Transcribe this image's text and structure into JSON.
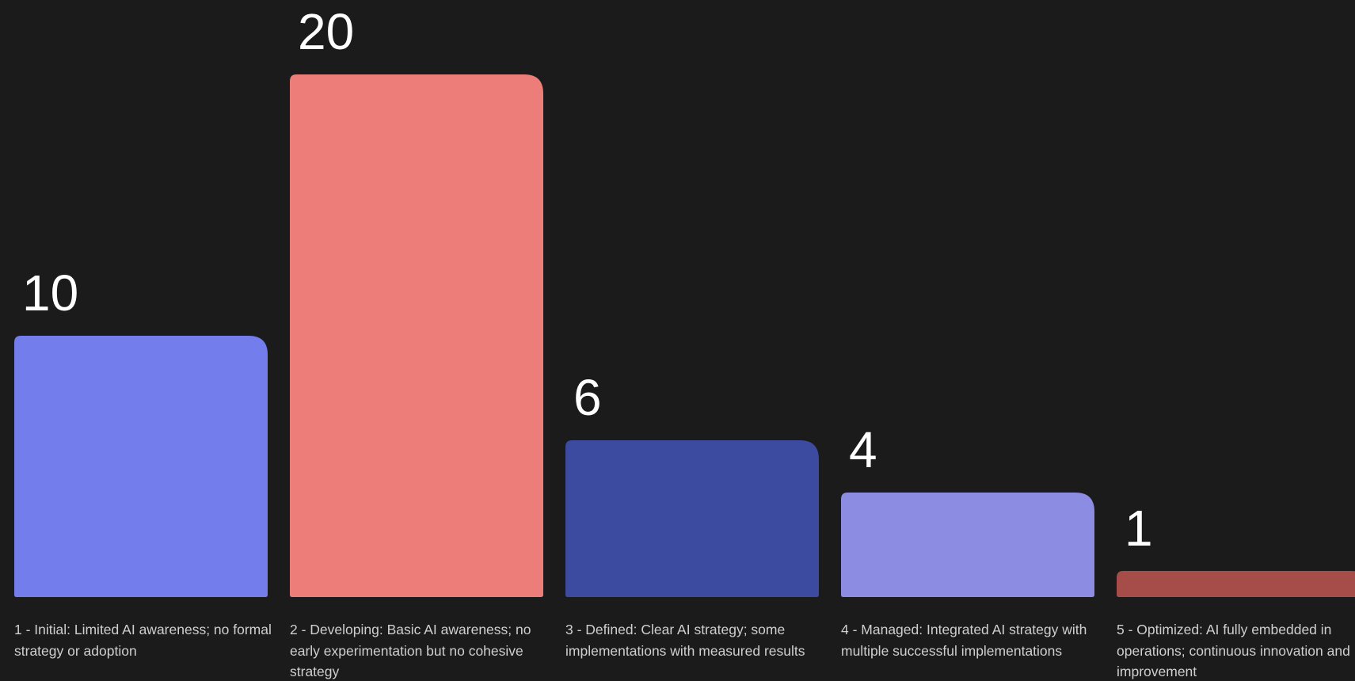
{
  "chart_data": {
    "type": "bar",
    "categories": [
      "1 - Initial: Limited AI awareness; no formal strategy or adoption",
      "2 - Developing: Basic AI awareness; no early experimentation but no cohesive strategy",
      "3 - Defined: Clear AI strategy; some implementations with measured results",
      "4 - Managed: Integrated AI strategy with multiple successful implementations",
      "5 - Optimized: AI fully embedded in operations; continuous innovation and improvement"
    ],
    "values": [
      10,
      20,
      6,
      4,
      1
    ],
    "value_labels": [
      "10",
      "20",
      "6",
      "4",
      "1"
    ],
    "colors": [
      "#737deb",
      "#ed7d79",
      "#3c4a9f",
      "#8c8ce3",
      "#a64d4a"
    ],
    "title": "",
    "xlabel": "",
    "ylabel": "",
    "ylim": [
      0,
      20
    ],
    "grid": false,
    "legend": "none"
  }
}
